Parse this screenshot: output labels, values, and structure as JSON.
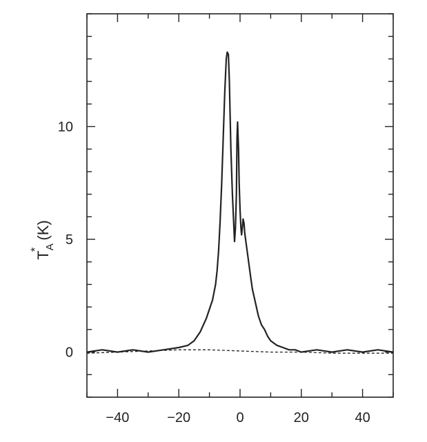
{
  "chart_data": {
    "type": "line",
    "title": "",
    "xlabel": "",
    "ylabel": {
      "symbol": "T",
      "superscript": "*",
      "subscript": "A",
      "unit": "(K)"
    },
    "xlim": [
      -50,
      50
    ],
    "ylim": [
      -2,
      15
    ],
    "x_ticks": [
      -40,
      -20,
      0,
      20,
      40
    ],
    "y_ticks": [
      0,
      5,
      10
    ],
    "grid": false,
    "legend": "none",
    "colors": {
      "line": "#222222",
      "axis": "#222222",
      "baseline": "#222222"
    },
    "series": [
      {
        "style": "solid",
        "x": [
          -50,
          -45,
          -40,
          -35,
          -30,
          -25,
          -20,
          -17,
          -15,
          -13,
          -11,
          -10,
          -9,
          -8,
          -7.5,
          -7,
          -6.5,
          -6,
          -5.5,
          -5,
          -4.5,
          -4.2,
          -3.8,
          -3.5,
          -3,
          -2.5,
          -2,
          -1.8,
          -1.5,
          -1.2,
          -1,
          -0.8,
          -0.5,
          -0.3,
          0,
          0.3,
          0.5,
          0.8,
          1,
          1.3,
          1.5,
          2,
          2.5,
          3,
          3.5,
          4,
          5,
          6,
          7,
          8,
          9,
          10,
          12,
          14,
          16,
          18,
          20,
          25,
          30,
          35,
          40,
          45,
          50
        ],
        "y": [
          0.0,
          0.1,
          0.0,
          0.1,
          0.0,
          0.1,
          0.2,
          0.3,
          0.5,
          0.9,
          1.5,
          1.9,
          2.3,
          3.0,
          3.6,
          4.5,
          5.8,
          7.5,
          9.5,
          11.5,
          13.0,
          13.3,
          13.2,
          12.0,
          9.0,
          7.0,
          5.5,
          4.9,
          5.5,
          7.0,
          9.5,
          10.2,
          9.0,
          7.5,
          6.3,
          5.5,
          5.2,
          5.6,
          5.9,
          5.7,
          5.3,
          4.8,
          4.3,
          3.8,
          3.3,
          2.8,
          2.2,
          1.6,
          1.2,
          1.0,
          0.7,
          0.5,
          0.3,
          0.2,
          0.1,
          0.1,
          0.0,
          0.1,
          0.0,
          0.1,
          0.0,
          0.1,
          0.0
        ]
      },
      {
        "style": "dashed",
        "x": [
          -50,
          -40,
          -30,
          -20,
          -10,
          0,
          10,
          20,
          30,
          40,
          50
        ],
        "y": [
          -0.05,
          0.0,
          0.05,
          0.1,
          0.1,
          0.05,
          0.0,
          0.0,
          -0.05,
          -0.05,
          -0.05
        ]
      }
    ]
  }
}
